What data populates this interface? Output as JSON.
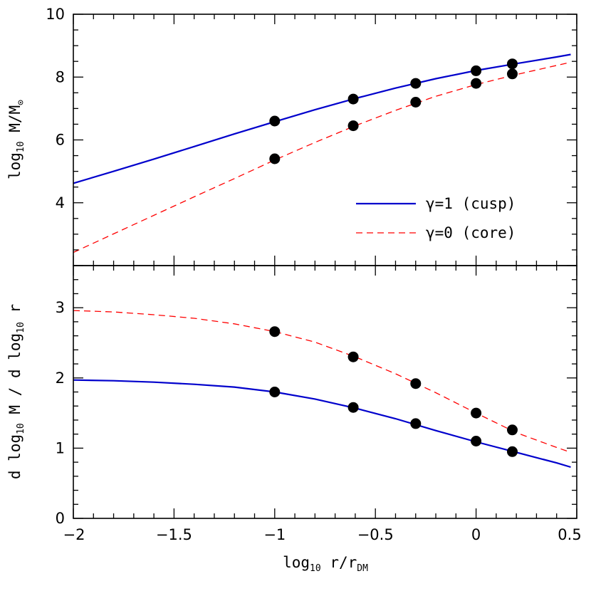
{
  "chart_data": [
    {
      "type": "line",
      "panel": "top",
      "xlim": [
        -2,
        0.5
      ],
      "ylim": [
        2.0,
        10.0
      ],
      "yticks": [
        4,
        6,
        8,
        10
      ],
      "ytick_labels": [
        "4",
        "6",
        "8",
        "10"
      ],
      "ylabel": "log10 M/M⊙",
      "legend": {
        "placement": "bottom-right",
        "entries": [
          {
            "label": "γ=1 (cusp)",
            "series": "cusp"
          },
          {
            "label": "γ=0 (core)",
            "series": "core"
          }
        ]
      },
      "series": [
        {
          "name": "γ=1 (cusp)",
          "key": "cusp",
          "color": "#0000cc",
          "style": "solid",
          "x": [
            -2.0,
            -1.8,
            -1.6,
            -1.4,
            -1.2,
            -1.0,
            -0.8,
            -0.6,
            -0.4,
            -0.2,
            0.0,
            0.2,
            0.4,
            0.47
          ],
          "y": [
            4.62,
            5.0,
            5.39,
            5.79,
            6.19,
            6.58,
            6.96,
            7.32,
            7.65,
            7.95,
            8.21,
            8.43,
            8.64,
            8.72
          ]
        },
        {
          "name": "γ=0 (core)",
          "key": "core",
          "color": "#ff0000",
          "style": "dashed",
          "x": [
            -2.0,
            -1.8,
            -1.6,
            -1.4,
            -1.2,
            -1.0,
            -0.8,
            -0.6,
            -0.4,
            -0.2,
            0.0,
            0.2,
            0.4,
            0.47
          ],
          "y": [
            2.42,
            3.01,
            3.6,
            4.19,
            4.77,
            5.36,
            5.92,
            6.45,
            6.94,
            7.39,
            7.76,
            8.08,
            8.37,
            8.47
          ]
        }
      ],
      "points": [
        {
          "x": -1.0,
          "y": 6.6
        },
        {
          "x": -1.0,
          "y": 5.4
        },
        {
          "x": -0.61,
          "y": 7.3
        },
        {
          "x": -0.61,
          "y": 6.45
        },
        {
          "x": -0.3,
          "y": 7.8
        },
        {
          "x": -0.3,
          "y": 7.2
        },
        {
          "x": 0.0,
          "y": 8.2
        },
        {
          "x": 0.0,
          "y": 7.8
        },
        {
          "x": 0.18,
          "y": 8.42
        },
        {
          "x": 0.18,
          "y": 8.1
        }
      ]
    },
    {
      "type": "line",
      "panel": "bottom",
      "xlim": [
        -2,
        0.5
      ],
      "ylim": [
        0,
        3.6
      ],
      "xticks": [
        -2,
        -1.5,
        -1,
        -0.5,
        0,
        0.5
      ],
      "xtick_labels": [
        "−2",
        "−1.5",
        "−1",
        "−0.5",
        "0",
        "0.5"
      ],
      "yticks": [
        0,
        1,
        2,
        3
      ],
      "ytick_labels": [
        "0",
        "1",
        "2",
        "3"
      ],
      "ylabel": "d log10 M / d log10 r",
      "xlabel": "log10 r/rDM",
      "series": [
        {
          "name": "γ=1 (cusp)",
          "key": "cusp",
          "color": "#0000cc",
          "style": "solid",
          "x": [
            -2.0,
            -1.8,
            -1.6,
            -1.4,
            -1.2,
            -1.0,
            -0.8,
            -0.6,
            -0.4,
            -0.2,
            0.0,
            0.2,
            0.4,
            0.47
          ],
          "y": [
            1.97,
            1.96,
            1.94,
            1.91,
            1.87,
            1.8,
            1.7,
            1.57,
            1.42,
            1.25,
            1.09,
            0.94,
            0.79,
            0.73
          ]
        },
        {
          "name": "γ=0 (core)",
          "key": "core",
          "color": "#ff0000",
          "style": "dashed",
          "x": [
            -2.0,
            -1.8,
            -1.6,
            -1.4,
            -1.2,
            -1.0,
            -0.8,
            -0.6,
            -0.4,
            -0.2,
            0.0,
            0.2,
            0.4,
            0.47
          ],
          "y": [
            2.96,
            2.94,
            2.9,
            2.85,
            2.77,
            2.66,
            2.51,
            2.3,
            2.06,
            1.79,
            1.5,
            1.22,
            1.01,
            0.94
          ]
        }
      ],
      "points": [
        {
          "x": -1.0,
          "y": 2.66
        },
        {
          "x": -1.0,
          "y": 1.8
        },
        {
          "x": -0.61,
          "y": 2.3
        },
        {
          "x": -0.61,
          "y": 1.58
        },
        {
          "x": -0.3,
          "y": 1.92
        },
        {
          "x": -0.3,
          "y": 1.35
        },
        {
          "x": 0.0,
          "y": 1.5
        },
        {
          "x": 0.0,
          "y": 1.1
        },
        {
          "x": 0.18,
          "y": 1.26
        },
        {
          "x": 0.18,
          "y": 0.95
        }
      ]
    }
  ]
}
